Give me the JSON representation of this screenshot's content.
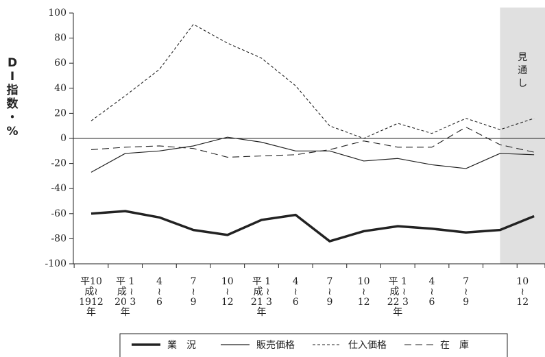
{
  "chart_data": {
    "type": "line",
    "ylabel": "DI指数・%",
    "categories": [
      "平10\n成≀\n1912\n年",
      "平 1\n成 ≀\n20 3\n年",
      "4\n≀\n6",
      "7\n≀\n9",
      "10\n≀\n12",
      "平 1\n成 ≀\n21 3\n年",
      "4\n≀\n6",
      "7\n≀\n9",
      "10\n≀\n12",
      "平 1\n成 ≀\n22 3\n年",
      "4\n≀\n6",
      "7\n≀\n9",
      null,
      "10\n≀\n12"
    ],
    "series": [
      {
        "name": "業　況",
        "color": "#222222",
        "style": "bold",
        "values": [
          -60,
          -58,
          -63,
          -73,
          -77,
          -65,
          -61,
          -82,
          -74,
          -70,
          -72,
          -75,
          -73,
          -62
        ]
      },
      {
        "name": "販売価格",
        "color": "#222222",
        "style": "solid",
        "values": [
          -27,
          -12,
          -10,
          -6,
          1,
          -3,
          -10,
          -10,
          -18,
          -16,
          -21,
          -24,
          -12,
          -13
        ]
      },
      {
        "name": "仕入価格",
        "color": "#222222",
        "style": "dotted",
        "values": [
          14,
          34,
          55,
          91,
          76,
          64,
          42,
          10,
          0,
          12,
          4,
          16,
          7,
          16
        ]
      },
      {
        "name": "在　庫",
        "color": "#222222",
        "style": "dashed",
        "values": [
          -9,
          -7,
          -6,
          -8,
          -15,
          -14,
          -13,
          -9,
          -2,
          -7,
          -7,
          9,
          -5,
          -11
        ]
      }
    ],
    "ylim": [
      -100,
      100
    ],
    "yticks": [
      -100,
      -80,
      -60,
      -40,
      -20,
      0,
      20,
      40,
      60,
      80,
      100
    ],
    "grid": false,
    "zero_line": true,
    "forecast": {
      "label": "見通し",
      "start_index": 12,
      "color": "#e0e0e0"
    },
    "legend": "bottom"
  }
}
